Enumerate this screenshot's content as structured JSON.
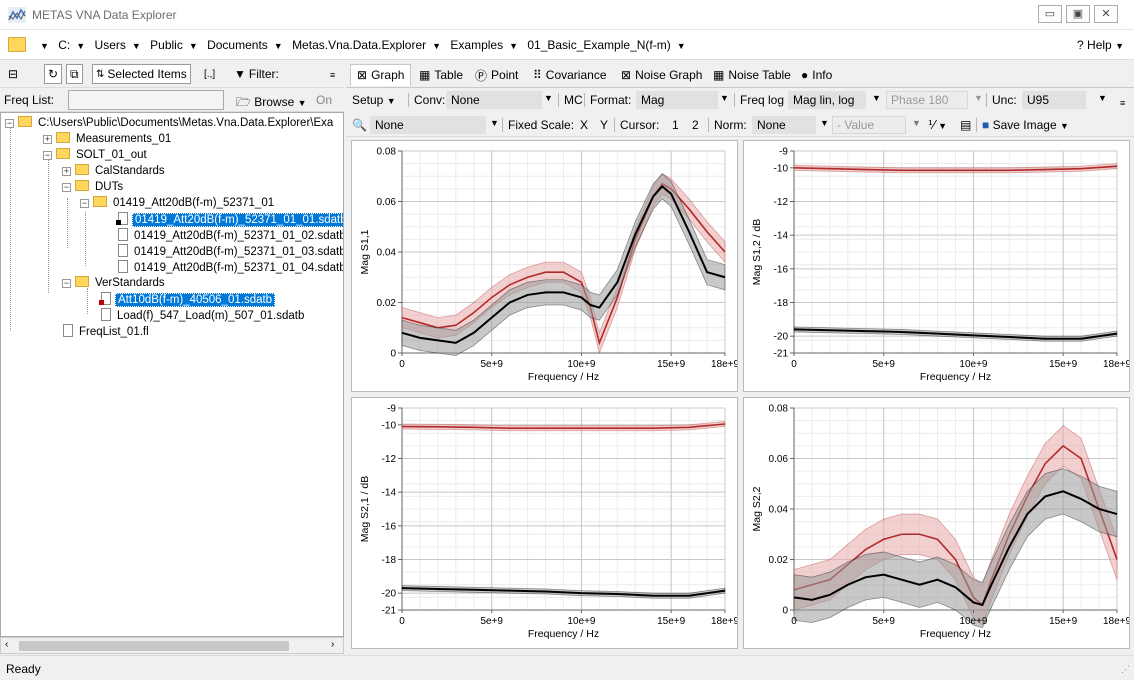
{
  "window": {
    "title": "METAS VNA Data Explorer"
  },
  "breadcrumb": [
    "C:",
    "Users",
    "Public",
    "Documents",
    "Metas.Vna.Data.Explorer",
    "Examples",
    "01_Basic_Example_N(f-m)"
  ],
  "help_label": "? Help",
  "left_toolbar": {
    "selected_items": "Selected Items",
    "filter": "Filter:",
    "range_glyph": "[.,]"
  },
  "freq_list": {
    "label": "Freq List:",
    "value": "",
    "browse": "Browse",
    "on": "On"
  },
  "tree": [
    {
      "label": "C:\\Users\\Public\\Documents\\Metas.Vna.Data.Explorer\\Exa",
      "type": "folder",
      "depth": 0
    },
    {
      "label": "Measurements_01",
      "type": "folder",
      "depth": 1
    },
    {
      "label": "SOLT_01_out",
      "type": "folder",
      "depth": 1
    },
    {
      "label": "CalStandards",
      "type": "folder",
      "depth": 2
    },
    {
      "label": "DUTs",
      "type": "folder",
      "depth": 2
    },
    {
      "label": "01419_Att20dB(f-m)_52371_01",
      "type": "folder",
      "depth": 3
    },
    {
      "label": "01419_Att20dB(f-m)_52371_01_01.sdatb",
      "type": "file",
      "depth": 4,
      "selected": true
    },
    {
      "label": "01419_Att20dB(f-m)_52371_01_02.sdatb",
      "type": "file",
      "depth": 4
    },
    {
      "label": "01419_Att20dB(f-m)_52371_01_03.sdatb",
      "type": "file",
      "depth": 4
    },
    {
      "label": "01419_Att20dB(f-m)_52371_01_04.sdatb",
      "type": "file",
      "depth": 4
    },
    {
      "label": "VerStandards",
      "type": "folder",
      "depth": 2
    },
    {
      "label": "Att10dB(f-m)_40506_01.sdatb",
      "type": "file",
      "depth": 3,
      "selected": true
    },
    {
      "label": "Load(f)_547_Load(m)_507_01.sdatb",
      "type": "file",
      "depth": 3
    },
    {
      "label": "FreqList_01.fl",
      "type": "file",
      "depth": 1
    }
  ],
  "tabs": [
    "Graph",
    "Table",
    "Point",
    "Covariance",
    "Noise Graph",
    "Noise Table",
    "Info"
  ],
  "options": {
    "setup": "Setup",
    "conv_label": "Conv:",
    "conv_value": "None",
    "mc": "MC",
    "format_label": "Format:",
    "format_value": "Mag",
    "freq_log": "Freq log",
    "mag_scale": "Mag lin, log",
    "phase": "Phase 180",
    "unc_label": "Unc:",
    "unc_value": "U95",
    "zoom_value": "None",
    "fixed_scale": "Fixed Scale:",
    "x": "X",
    "y": "Y",
    "cursor": "Cursor:",
    "c1": "1",
    "c2": "2",
    "norm_label": "Norm:",
    "norm_value": "None",
    "value_placeholder": "- Value",
    "save_image": "Save Image"
  },
  "status": "Ready",
  "colors": {
    "red": "#b22a2a",
    "red_band": "#e8a9a9",
    "black": "#000000",
    "gray_band": "#9a9a9a"
  },
  "chart_data": [
    {
      "type": "line",
      "ylabel": "Mag S1,1",
      "xlabel": "Frequency / Hz",
      "xlim": [
        0,
        18000000000.0
      ],
      "ylim": [
        0,
        0.08
      ],
      "xticks": [
        0,
        5000000000.0,
        10000000000.0,
        15000000000.0,
        18000000000.0
      ],
      "xtick_labels": [
        "0",
        "5e+9",
        "10e+9",
        "15e+9",
        "18e+9"
      ],
      "yticks": [
        0,
        0.02,
        0.04,
        0.06,
        0.08
      ],
      "ytick_labels": [
        "0",
        "0.02",
        "0.04",
        "0.06",
        "0.08"
      ],
      "x": [
        0,
        1000000000.0,
        2000000000.0,
        3000000000.0,
        4000000000.0,
        5000000000.0,
        6000000000.0,
        7000000000.0,
        8000000000.0,
        9000000000.0,
        10000000000.0,
        10500000000.0,
        11000000000.0,
        12000000000.0,
        13000000000.0,
        14000000000.0,
        14500000000.0,
        15000000000.0,
        16000000000.0,
        17000000000.0,
        18000000000.0
      ],
      "series": [
        {
          "color": "red",
          "band": 0.004,
          "values": [
            0.014,
            0.012,
            0.01,
            0.011,
            0.016,
            0.022,
            0.027,
            0.03,
            0.032,
            0.032,
            0.028,
            0.018,
            0.004,
            0.022,
            0.045,
            0.062,
            0.067,
            0.065,
            0.057,
            0.048,
            0.04
          ]
        },
        {
          "color": "black",
          "band": 0.005,
          "values": [
            0.008,
            0.006,
            0.005,
            0.004,
            0.008,
            0.014,
            0.02,
            0.023,
            0.024,
            0.024,
            0.022,
            0.019,
            0.018,
            0.028,
            0.047,
            0.062,
            0.066,
            0.063,
            0.048,
            0.032,
            0.03
          ]
        }
      ]
    },
    {
      "type": "line",
      "ylabel": "Mag S1,2 / dB",
      "xlabel": "Frequency / Hz",
      "xlim": [
        0,
        18000000000.0
      ],
      "ylim": [
        -21,
        -9
      ],
      "xticks": [
        0,
        5000000000.0,
        10000000000.0,
        15000000000.0,
        18000000000.0
      ],
      "xtick_labels": [
        "0",
        "5e+9",
        "10e+9",
        "15e+9",
        "18e+9"
      ],
      "yticks": [
        -21,
        -20,
        -18,
        -16,
        -14,
        -12,
        -10,
        -9
      ],
      "ytick_labels": [
        "-21",
        "-20",
        "-18",
        "-16",
        "-14",
        "-12",
        "-10",
        "-9"
      ],
      "x": [
        0,
        2000000000.0,
        4000000000.0,
        6000000000.0,
        8000000000.0,
        10000000000.0,
        12000000000.0,
        14000000000.0,
        16000000000.0,
        18000000000.0
      ],
      "series": [
        {
          "color": "red",
          "band": 0.15,
          "values": [
            -10.0,
            -10.05,
            -10.1,
            -10.15,
            -10.15,
            -10.15,
            -10.15,
            -10.1,
            -10.05,
            -9.9
          ]
        },
        {
          "color": "black",
          "band": 0.15,
          "values": [
            -19.6,
            -19.65,
            -19.7,
            -19.75,
            -19.85,
            -19.95,
            -20.05,
            -20.15,
            -20.15,
            -19.85
          ]
        }
      ]
    },
    {
      "type": "line",
      "ylabel": "Mag S2,1 / dB",
      "xlabel": "Frequency / Hz",
      "xlim": [
        0,
        18000000000.0
      ],
      "ylim": [
        -21,
        -9
      ],
      "xticks": [
        0,
        5000000000.0,
        10000000000.0,
        15000000000.0,
        18000000000.0
      ],
      "xtick_labels": [
        "0",
        "5e+9",
        "10e+9",
        "15e+9",
        "18e+9"
      ],
      "yticks": [
        -21,
        -20,
        -18,
        -16,
        -14,
        -12,
        -10,
        -9
      ],
      "ytick_labels": [
        "-21",
        "-20",
        "-18",
        "-16",
        "-14",
        "-12",
        "-10",
        "-9"
      ],
      "x": [
        0,
        2000000000.0,
        4000000000.0,
        6000000000.0,
        8000000000.0,
        10000000000.0,
        12000000000.0,
        14000000000.0,
        16000000000.0,
        18000000000.0
      ],
      "series": [
        {
          "color": "red",
          "band": 0.15,
          "values": [
            -10.1,
            -10.12,
            -10.15,
            -10.2,
            -10.2,
            -10.2,
            -10.2,
            -10.2,
            -10.15,
            -9.95
          ]
        },
        {
          "color": "black",
          "band": 0.15,
          "values": [
            -19.7,
            -19.75,
            -19.8,
            -19.85,
            -19.9,
            -20.0,
            -20.05,
            -20.15,
            -20.15,
            -19.85
          ]
        }
      ]
    },
    {
      "type": "line",
      "ylabel": "Mag S2,2",
      "xlabel": "Frequency / Hz",
      "xlim": [
        0,
        18000000000.0
      ],
      "ylim": [
        0,
        0.08
      ],
      "xticks": [
        0,
        5000000000.0,
        10000000000.0,
        15000000000.0,
        18000000000.0
      ],
      "xtick_labels": [
        "0",
        "5e+9",
        "10e+9",
        "15e+9",
        "18e+9"
      ],
      "yticks": [
        0,
        0.02,
        0.04,
        0.06,
        0.08
      ],
      "ytick_labels": [
        "0",
        "0.02",
        "0.04",
        "0.06",
        "0.08"
      ],
      "x": [
        0,
        1000000000.0,
        2000000000.0,
        3000000000.0,
        4000000000.0,
        5000000000.0,
        6000000000.0,
        7000000000.0,
        8000000000.0,
        9000000000.0,
        10000000000.0,
        10500000000.0,
        11000000000.0,
        12000000000.0,
        13000000000.0,
        14000000000.0,
        15000000000.0,
        16000000000.0,
        17000000000.0,
        18000000000.0
      ],
      "series": [
        {
          "color": "red",
          "band": 0.008,
          "values": [
            0.008,
            0.01,
            0.012,
            0.018,
            0.024,
            0.028,
            0.03,
            0.03,
            0.028,
            0.02,
            0.005,
            0.002,
            0.012,
            0.03,
            0.045,
            0.058,
            0.065,
            0.06,
            0.04,
            0.02
          ]
        },
        {
          "color": "black",
          "band": 0.009,
          "values": [
            0.005,
            0.004,
            0.006,
            0.01,
            0.013,
            0.014,
            0.012,
            0.01,
            0.012,
            0.009,
            0.003,
            0.002,
            0.01,
            0.025,
            0.038,
            0.045,
            0.047,
            0.044,
            0.04,
            0.038
          ]
        }
      ]
    }
  ]
}
